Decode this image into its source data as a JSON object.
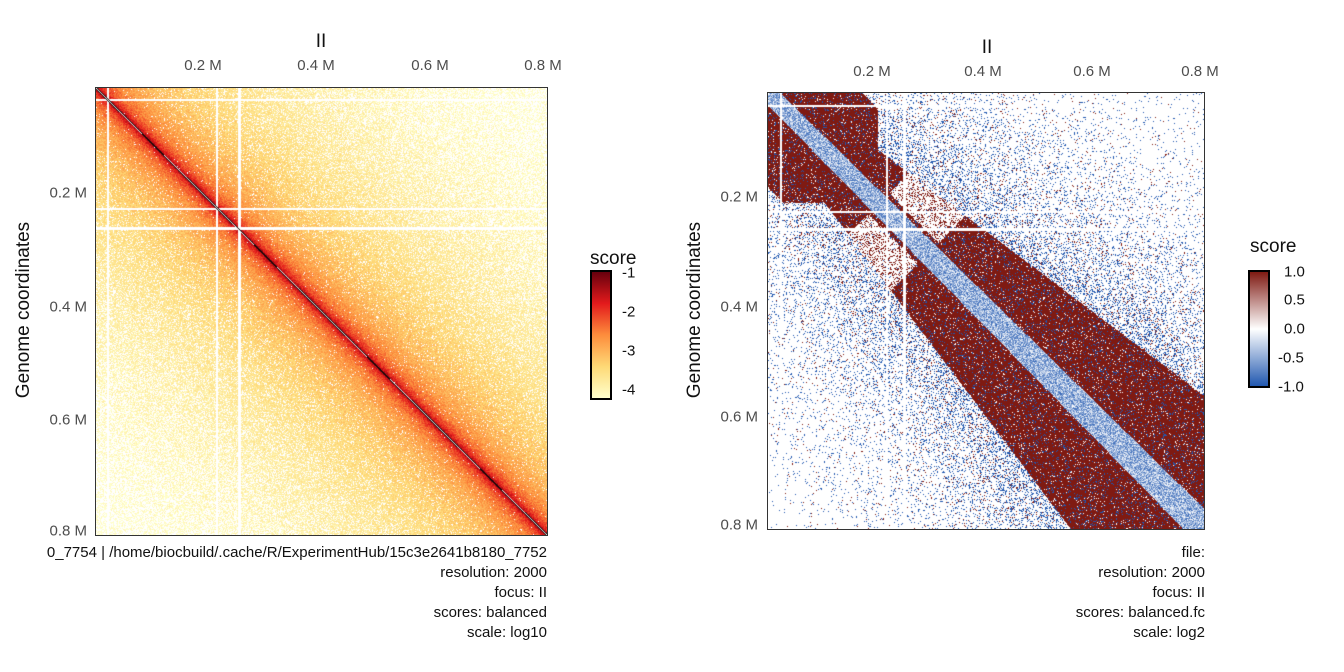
{
  "chart_data": [
    {
      "type": "heatmap",
      "title": "II",
      "ylabel": "Genome coordinates",
      "x_ticks": [
        "0.2 M",
        "0.4 M",
        "0.6 M",
        "0.8 M"
      ],
      "y_ticks": [
        "0.2 M",
        "0.4 M",
        "0.6 M",
        "0.8 M"
      ],
      "x_tick_values": [
        200000,
        400000,
        600000,
        800000
      ],
      "axis_range": [
        12000,
        814000
      ],
      "legend": {
        "title": "score",
        "ticks": [
          "-1",
          "-2",
          "-3",
          "-4"
        ],
        "values": [
          -1,
          -2,
          -3,
          -4
        ],
        "range": [
          -4,
          -1
        ],
        "position": "right",
        "colors": [
          "#ffffcc",
          "#fed976",
          "#fd8d3c",
          "#e31a1c",
          "#67000d"
        ]
      },
      "caption": [
        "0_7754 | /home/biocbuild/.cache/R/ExperimentHub/15c3e2641b8180_7752",
        "resolution: 2000",
        "focus: II",
        "scores: balanced",
        "scale: log10"
      ]
    },
    {
      "type": "heatmap",
      "title": "II",
      "ylabel": "Genome coordinates",
      "x_ticks": [
        "0.2 M",
        "0.4 M",
        "0.6 M",
        "0.8 M"
      ],
      "y_ticks": [
        "0.2 M",
        "0.4 M",
        "0.6 M",
        "0.8 M"
      ],
      "x_tick_values": [
        200000,
        400000,
        600000,
        800000
      ],
      "axis_range": [
        12000,
        814000
      ],
      "legend": {
        "title": "score",
        "ticks": [
          "1.0",
          "0.5",
          "0.0",
          "-0.5",
          "-1.0"
        ],
        "values": [
          1,
          0.5,
          0,
          -0.5,
          -1
        ],
        "range": [
          -1,
          1
        ],
        "position": "right",
        "colors": [
          "#2158b0",
          "#ffffff",
          "#7f1a12"
        ]
      },
      "caption": [
        "file:",
        "resolution: 2000",
        "focus: II",
        "scores: balanced.fc",
        "scale: log2"
      ]
    }
  ]
}
